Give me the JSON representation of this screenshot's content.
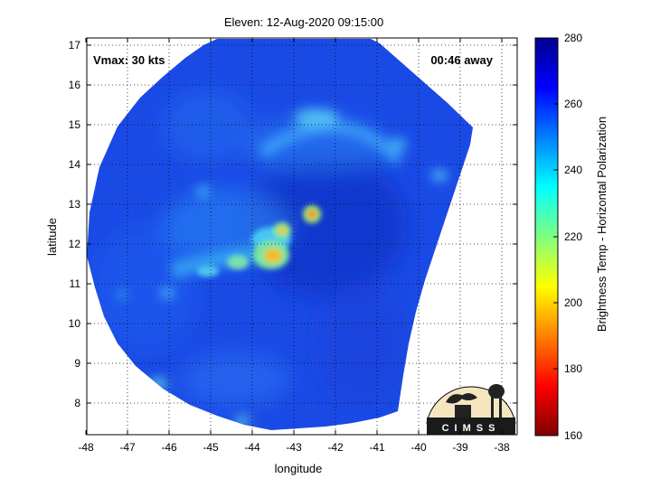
{
  "title": "Eleven: 12-Aug-2020 09:15:00",
  "vmax_label": "Vmax: 30 kts",
  "time_away_label": "00:46 away",
  "xaxis": {
    "label": "longitude",
    "ticks": [
      "-48",
      "-47",
      "-46",
      "-45",
      "-44",
      "-43",
      "-42",
      "-41",
      "-40",
      "-39",
      "-38"
    ],
    "range": [
      -48.05,
      -37.75
    ]
  },
  "yaxis": {
    "label": "latitude",
    "ticks": [
      "8",
      "9",
      "10",
      "11",
      "12",
      "13",
      "14",
      "15",
      "16",
      "17"
    ],
    "range": [
      7.2,
      17.2
    ]
  },
  "colorbar": {
    "label": "Brightness Temp - Horizontal Polarization",
    "ticks": [
      "160",
      "180",
      "200",
      "220",
      "240",
      "260",
      "280"
    ],
    "range": [
      160,
      280
    ],
    "colormap": [
      "#7f0000",
      "#ff0000",
      "#ff8000",
      "#ffff00",
      "#80ff80",
      "#00ffff",
      "#0080ff",
      "#0000ff",
      "#00008f"
    ]
  },
  "logo": {
    "text": "CIMSS"
  },
  "grid": "dotted",
  "swath_background_color": "#1a4ae6",
  "cold_cloud_features": [
    {
      "lon": -42.6,
      "lat": 12.75,
      "tb": 212
    },
    {
      "lon": -43.35,
      "lat": 12.35,
      "tb": 214
    },
    {
      "lon": -43.5,
      "lat": 11.72,
      "tb": 210
    },
    {
      "lon": -44.2,
      "lat": 11.55,
      "tb": 225
    },
    {
      "lon": -45.2,
      "lat": 11.4,
      "tb": 238
    },
    {
      "lon": -43.3,
      "lat": 14.4,
      "tb": 240
    },
    {
      "lon": -42.1,
      "lat": 14.9,
      "tb": 245
    },
    {
      "lon": -40.1,
      "lat": 14.25,
      "tb": 248
    },
    {
      "lon": -38.95,
      "lat": 13.7,
      "tb": 250
    },
    {
      "lon": -46.3,
      "lat": 8.5,
      "tb": 232
    }
  ]
}
